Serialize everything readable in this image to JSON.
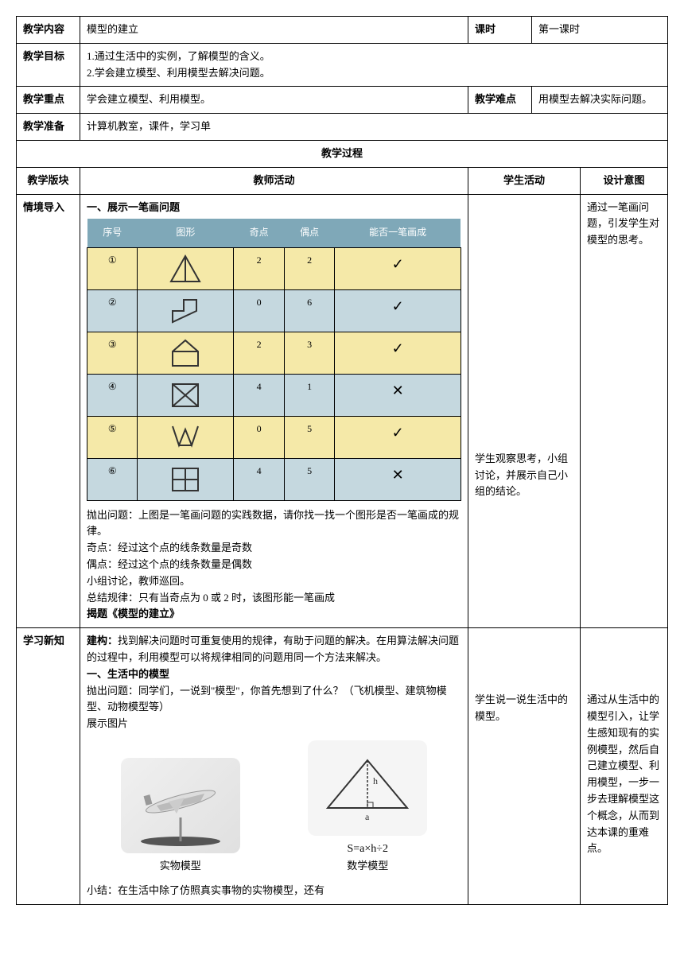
{
  "header": {
    "content_label": "教学内容",
    "content_value": "模型的建立",
    "period_label": "课时",
    "period_value": "第一课时",
    "goal_label": "教学目标",
    "goal_value": "1.通过生活中的实例，了解模型的含义。\n2.学会建立模型、利用模型去解决问题。",
    "focus_label": "教学重点",
    "focus_value": "学会建立模型、利用模型。",
    "difficulty_label": "教学难点",
    "difficulty_value": "用模型去解决实际问题。",
    "prep_label": "教学准备",
    "prep_value": "计算机教室，课件，学习单",
    "process_label": "教学过程",
    "section_label": "教学版块",
    "teacher_label": "教师活动",
    "student_label": "学生活动",
    "design_label": "设计意图"
  },
  "section1": {
    "name": "情境导入",
    "intro": "一、展示一笔画问题",
    "table_headers": [
      "序号",
      "图形",
      "奇点",
      "偶点",
      "能否一笔画成"
    ],
    "rows": [
      {
        "num": "①",
        "odd": "2",
        "even": "2",
        "ok": "✓",
        "bg": "row-yellow"
      },
      {
        "num": "②",
        "odd": "0",
        "even": "6",
        "ok": "✓",
        "bg": "row-blue"
      },
      {
        "num": "③",
        "odd": "2",
        "even": "3",
        "ok": "✓",
        "bg": "row-yellow"
      },
      {
        "num": "④",
        "odd": "4",
        "even": "1",
        "ok": "✕",
        "bg": "row-blue"
      },
      {
        "num": "⑤",
        "odd": "0",
        "even": "5",
        "ok": "✓",
        "bg": "row-yellow"
      },
      {
        "num": "⑥",
        "odd": "4",
        "even": "5",
        "ok": "✕",
        "bg": "row-blue"
      }
    ],
    "body": "抛出问题：上图是一笔画问题的实践数据，请你找一找一个图形是否一笔画成的规律。\n奇点：经过这个点的线条数量是奇数\n偶点：经过这个点的线条数量是偶数\n小组讨论，教师巡回。\n总结规律：只有当奇点为 0 或 2 时，该图形能一笔画成",
    "reveal": "揭题《模型的建立》",
    "student": "学生观察思考，小组讨论，并展示自己小组的结论。",
    "design": "通过一笔画问题，引发学生对模型的思考。"
  },
  "section2": {
    "name": "学习新知",
    "construct_label": "建构：",
    "construct_body": "找到解决问题时可重复使用的规律，有助于问题的解决。在用算法解决问题的过程中，利用模型可以将规律相同的问题用同一个方法来解决。",
    "sub1_title": "一、生活中的模型",
    "sub1_body": "抛出问题：同学们，一说到\"模型\"，你首先想到了什么？（飞机模型、建筑物模型、动物模型等）\n展示图片",
    "model1_caption": "实物模型",
    "model2_caption": "数学模型",
    "model2_formula": "S=a×h÷2",
    "summary": "小结：在生活中除了仿照真实事物的实物模型，还有",
    "student": "学生说一说生活中的模型。",
    "design": "通过从生活中的模型引入，让学生感知现有的实例模型，然后自己建立模型、利用模型，一步一步去理解模型这个概念，从而到达本课的重难点。"
  },
  "colors": {
    "header_bg": "#7fa8b8",
    "row_yellow": "#f5e9a8",
    "row_blue": "#c5d8df"
  }
}
